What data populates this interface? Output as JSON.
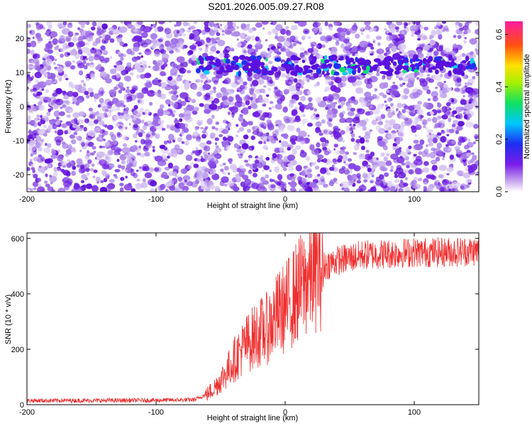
{
  "figure_title": "S201.2026.005.09.27.R08",
  "colors": {
    "snr_line": "#f03030",
    "noise_low": "#9b78d8",
    "noise_high": "#6a1fd4",
    "band_peak": "#1fd070"
  },
  "chart_data": [
    {
      "type": "heatmap",
      "xlabel": "Height of straight line (km)",
      "ylabel": "Frequency (Hz)",
      "xlim": [
        -200,
        150
      ],
      "ylim": [
        -25,
        25
      ],
      "xticks": [
        -200,
        -100,
        0,
        100
      ],
      "yticks": [
        -20,
        -10,
        0,
        10,
        20
      ],
      "colormap": "rainbow (white-purple-blue-cyan-green-yellow-red-magenta)",
      "colorbar": {
        "label": "Normalized spectral amplitude",
        "range": [
          0.0,
          0.65
        ],
        "ticks": [
          "0.0",
          "0.2",
          "0.4",
          "0.6"
        ]
      },
      "features": [
        {
          "kind": "band",
          "frequency_hz": 12,
          "x_from": -70,
          "x_to": 150,
          "peak_amplitude": 0.35
        },
        {
          "kind": "background_noise",
          "amplitude_range": [
            0.0,
            0.15
          ]
        }
      ],
      "grid": false,
      "legend": "none"
    },
    {
      "type": "line",
      "xlabel": "Height of straight line (km)",
      "ylabel": "SNR (10 * v/v)",
      "xlim": [
        -200,
        150
      ],
      "ylim": [
        0,
        620
      ],
      "xticks": [
        -200,
        -100,
        0,
        100
      ],
      "yticks": [
        0,
        200,
        400,
        600
      ],
      "series": [
        {
          "x": [
            -200,
            -150,
            -100,
            -70,
            -60,
            -55,
            -50,
            -45,
            -40,
            -35,
            -30,
            -25,
            -20,
            -15,
            -10,
            -5,
            0,
            5,
            10,
            15,
            20,
            25,
            30,
            40,
            50,
            60,
            80,
            100,
            120,
            150
          ],
          "y": [
            15,
            15,
            16,
            18,
            40,
            60,
            90,
            120,
            160,
            190,
            220,
            240,
            260,
            270,
            300,
            330,
            350,
            380,
            410,
            440,
            470,
            490,
            500,
            520,
            530,
            540,
            545,
            550,
            550,
            555
          ]
        }
      ],
      "grid": false,
      "legend": "none"
    }
  ]
}
